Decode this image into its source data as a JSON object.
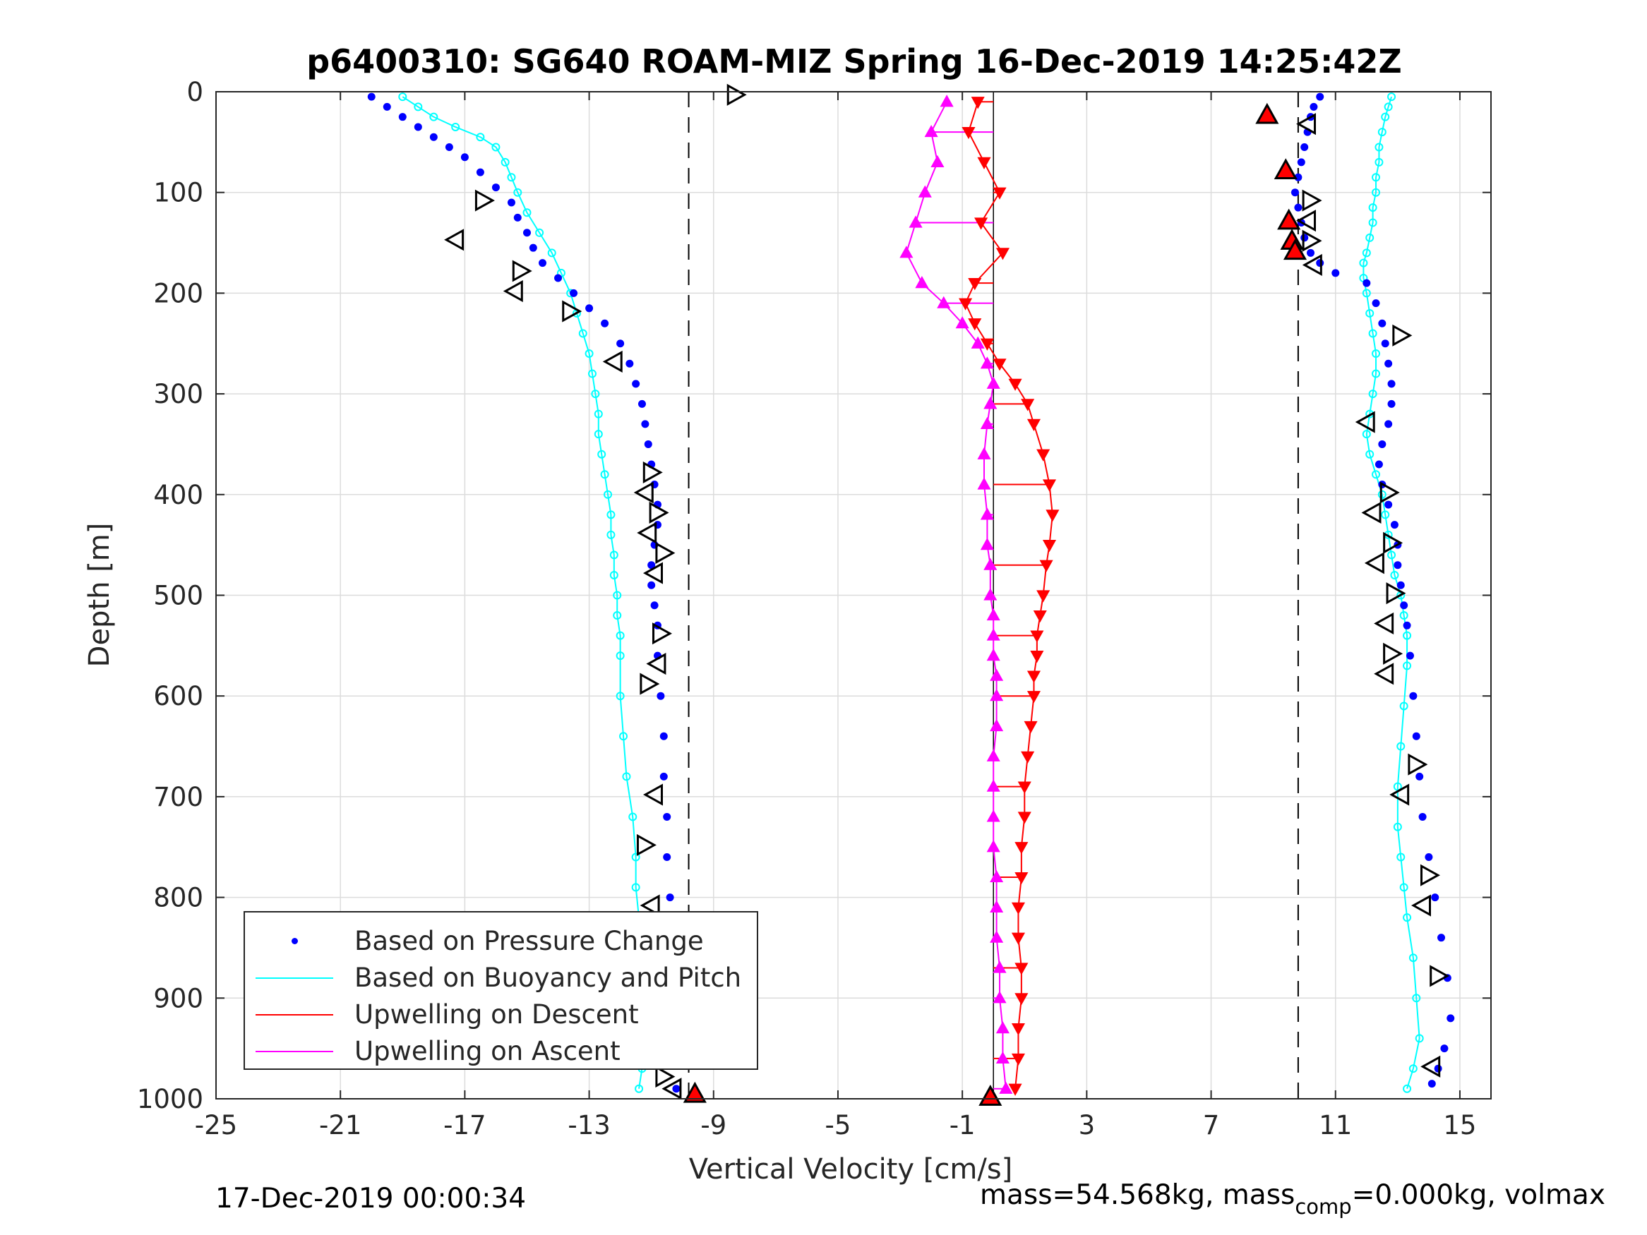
{
  "chart_data": {
    "type": "scatter",
    "title": "p6400310: SG640 ROAM-MIZ Spring 16-Dec-2019 14:25:42Z",
    "xlabel": "Vertical Velocity [cm/s]",
    "ylabel": "Depth [m]",
    "xlim": [
      -25,
      16
    ],
    "ylim": [
      0,
      1000
    ],
    "y_reversed": true,
    "grid": true,
    "legend_position": "bottom-left",
    "x_ticks": [
      "-25",
      "-21",
      "-17",
      "-13",
      "-9",
      "-5",
      "-1",
      "3",
      "7",
      "11",
      "15"
    ],
    "x_tick_values": [
      -25,
      -21,
      -17,
      -13,
      -9,
      -5,
      -1,
      3,
      7,
      11,
      15
    ],
    "y_ticks": [
      "0",
      "100",
      "200",
      "300",
      "400",
      "500",
      "600",
      "700",
      "800",
      "900",
      "1000"
    ],
    "y_tick_values": [
      0,
      100,
      200,
      300,
      400,
      500,
      600,
      700,
      800,
      900,
      1000
    ],
    "reference_lines": {
      "dashed_x": [
        -9.8,
        9.8
      ],
      "solid_x": [
        0
      ]
    },
    "series": [
      {
        "name": "Based on Pressure Change",
        "color": "#0000ff",
        "style": "dots",
        "groups": [
          {
            "x": [
              -20,
              -19.5,
              -19,
              -18.5,
              -18,
              -17.5,
              -17,
              -16.5,
              -16,
              -15.5,
              -15.3,
              -15,
              -14.8,
              -14.5,
              -14,
              -13.5,
              -13,
              -12.5,
              -12,
              -11.7,
              -11.5,
              -11.3,
              -11.2,
              -11.1,
              -11,
              -10.9,
              -10.8,
              -10.8,
              -10.9,
              -11,
              -11,
              -10.9,
              -10.8,
              -10.8,
              -10.7,
              -10.6,
              -10.6,
              -10.5,
              -10.5,
              -10.4,
              -10.4,
              -10.3,
              -10.3,
              -10.2,
              -10.2
            ],
            "y": [
              5,
              15,
              25,
              35,
              45,
              55,
              65,
              80,
              95,
              110,
              125,
              140,
              155,
              170,
              185,
              200,
              215,
              230,
              250,
              270,
              290,
              310,
              330,
              350,
              370,
              390,
              410,
              430,
              450,
              470,
              490,
              510,
              530,
              560,
              600,
              640,
              680,
              720,
              760,
              800,
              840,
              880,
              920,
              960,
              990
            ]
          },
          {
            "x": [
              10.5,
              10.3,
              10.2,
              10.1,
              10,
              9.9,
              9.8,
              9.7,
              9.8,
              9.9,
              10,
              10.2,
              10.5,
              11,
              12,
              12.3,
              12.5,
              12.6,
              12.7,
              12.8,
              12.8,
              12.7,
              12.5,
              12.4,
              12.5,
              12.7,
              12.9,
              13,
              13,
              13.1,
              13.2,
              13.3,
              13.4,
              13.5,
              13.6,
              13.7,
              13.8,
              14,
              14.2,
              14.4,
              14.6,
              14.7,
              14.5,
              14.3,
              14.1
            ],
            "y": [
              5,
              15,
              25,
              40,
              55,
              70,
              85,
              100,
              115,
              130,
              145,
              160,
              170,
              180,
              190,
              210,
              230,
              250,
              270,
              290,
              310,
              330,
              350,
              370,
              390,
              410,
              430,
              450,
              470,
              490,
              510,
              530,
              560,
              600,
              640,
              680,
              720,
              760,
              800,
              840,
              880,
              920,
              950,
              970,
              985
            ]
          }
        ]
      },
      {
        "name": "Based on Buoyancy and Pitch",
        "color": "#00ffff",
        "style": "line-circles",
        "groups": [
          {
            "x": [
              -19,
              -18.5,
              -18,
              -17.3,
              -16.5,
              -16,
              -15.7,
              -15.5,
              -15.3,
              -15,
              -14.6,
              -14.2,
              -13.9,
              -13.6,
              -13.4,
              -13.2,
              -13,
              -12.9,
              -12.8,
              -12.7,
              -12.7,
              -12.6,
              -12.5,
              -12.4,
              -12.3,
              -12.3,
              -12.2,
              -12.2,
              -12.1,
              -12.1,
              -12,
              -12,
              -12,
              -11.9,
              -11.8,
              -11.6,
              -11.5,
              -11.5,
              -11.4,
              -11.4,
              -11.3,
              -11.3,
              -11.3,
              -11.3,
              -11.4
            ],
            "y": [
              5,
              15,
              25,
              35,
              45,
              55,
              70,
              85,
              100,
              120,
              140,
              160,
              180,
              200,
              220,
              240,
              260,
              280,
              300,
              320,
              340,
              360,
              380,
              400,
              420,
              440,
              460,
              480,
              500,
              520,
              540,
              560,
              600,
              640,
              680,
              720,
              760,
              790,
              820,
              850,
              880,
              910,
              940,
              970,
              990
            ]
          },
          {
            "x": [
              12.8,
              12.7,
              12.6,
              12.5,
              12.4,
              12.4,
              12.3,
              12.3,
              12.2,
              12.2,
              12.1,
              12,
              11.9,
              11.9,
              12,
              12.1,
              12.2,
              12.3,
              12.3,
              12.2,
              12.1,
              12,
              12.1,
              12.3,
              12.5,
              12.6,
              12.7,
              12.8,
              12.9,
              13.1,
              13.2,
              13.3,
              13.3,
              13.2,
              13.1,
              13,
              13,
              13.1,
              13.2,
              13.3,
              13.5,
              13.6,
              13.7,
              13.5,
              13.3
            ],
            "y": [
              5,
              15,
              25,
              40,
              55,
              70,
              85,
              100,
              115,
              130,
              145,
              160,
              170,
              185,
              200,
              220,
              240,
              260,
              280,
              300,
              320,
              340,
              360,
              380,
              400,
              420,
              440,
              460,
              480,
              500,
              520,
              540,
              570,
              610,
              650,
              690,
              730,
              760,
              790,
              820,
              860,
              900,
              940,
              970,
              990
            ]
          }
        ]
      },
      {
        "name": "Upwelling on Descent",
        "color": "#ff0000",
        "style": "line-triangles-down",
        "x": [
          -0.5,
          -0.8,
          -0.3,
          0.2,
          -0.4,
          0.3,
          -0.6,
          -0.9,
          -0.6,
          -0.2,
          0.2,
          0.7,
          1.1,
          1.3,
          1.6,
          1.8,
          1.9,
          1.8,
          1.7,
          1.6,
          1.5,
          1.4,
          1.4,
          1.3,
          1.3,
          1.2,
          1.1,
          1.0,
          1.0,
          0.9,
          0.9,
          0.8,
          0.8,
          0.9,
          0.9,
          0.8,
          0.8,
          0.7
        ],
        "y": [
          10,
          40,
          70,
          100,
          130,
          160,
          190,
          210,
          230,
          250,
          270,
          290,
          310,
          330,
          360,
          390,
          420,
          450,
          470,
          500,
          520,
          540,
          560,
          580,
          600,
          630,
          660,
          690,
          720,
          750,
          780,
          810,
          840,
          870,
          900,
          930,
          960,
          990
        ]
      },
      {
        "name": "Upwelling on Ascent",
        "color": "#ff00ff",
        "style": "line-triangles-up",
        "x": [
          -1.5,
          -2,
          -1.8,
          -2.2,
          -2.5,
          -2.8,
          -2.3,
          -1.6,
          -1,
          -0.5,
          -0.2,
          0,
          -0.1,
          -0.2,
          -0.3,
          -0.3,
          -0.2,
          -0.2,
          -0.1,
          -0.1,
          0,
          0,
          0,
          0.1,
          0.1,
          0.1,
          0,
          0,
          0,
          0,
          0.1,
          0.1,
          0.1,
          0.2,
          0.2,
          0.3,
          0.3,
          0.4
        ],
        "y": [
          10,
          40,
          70,
          100,
          130,
          160,
          190,
          210,
          230,
          250,
          270,
          290,
          310,
          330,
          360,
          390,
          420,
          450,
          470,
          500,
          520,
          540,
          560,
          580,
          600,
          630,
          660,
          690,
          720,
          750,
          780,
          810,
          840,
          870,
          900,
          930,
          960,
          990
        ]
      }
    ],
    "markers": {
      "open_triangles_left_group": {
        "x": [
          -16.4,
          -17.3,
          -15.2,
          -15.4,
          -13.6,
          -12.2,
          -11,
          -11.2,
          -10.8,
          -11.1,
          -10.6,
          -10.9,
          -10.7,
          -10.8,
          -11.1,
          -10.9,
          -11.2,
          -11,
          -10.6,
          -10.9,
          -10.6,
          -10.3
        ],
        "y": [
          108,
          147,
          178,
          198,
          218,
          268,
          378,
          398,
          418,
          438,
          458,
          478,
          538,
          568,
          588,
          698,
          748,
          808,
          868,
          928,
          978,
          990
        ]
      },
      "open_triangles_right_group": {
        "x": [
          10.1,
          10.2,
          10.1,
          10.2,
          10.3,
          13.1,
          12,
          12.7,
          12.2,
          12.8,
          12.3,
          12.9,
          12.6,
          12.8,
          12.6,
          13.6,
          13.1,
          14,
          13.8,
          14.3,
          14.1
        ],
        "y": [
          32,
          108,
          128,
          148,
          172,
          242,
          328,
          398,
          418,
          448,
          468,
          498,
          528,
          558,
          578,
          668,
          698,
          778,
          808,
          878,
          968
        ]
      },
      "red_filled_triangles": {
        "x": [
          -9.6,
          -0.1,
          8.8,
          9.4,
          9.5,
          9.6,
          9.7
        ],
        "y": [
          995,
          998,
          23,
          78,
          128,
          148,
          158
        ]
      },
      "open_triangle_top": {
        "x": [
          -8.3
        ],
        "y": [
          3
        ]
      }
    },
    "legend": [
      {
        "label": "Based on Pressure Change",
        "color": "#0000ff",
        "kind": "dot"
      },
      {
        "label": "Based on Buoyancy and Pitch",
        "color": "#00ffff",
        "kind": "line"
      },
      {
        "label": "Upwelling on Descent",
        "color": "#ff0000",
        "kind": "line"
      },
      {
        "label": "Upwelling on Ascent",
        "color": "#ff00ff",
        "kind": "line"
      }
    ]
  },
  "footer": {
    "timestamp": "17-Dec-2019 00:00:34",
    "mass_text_prefix": "mass=54.568kg, mass",
    "mass_sub": "comp",
    "mass_text_suffix": "=0.000kg, volmax"
  }
}
